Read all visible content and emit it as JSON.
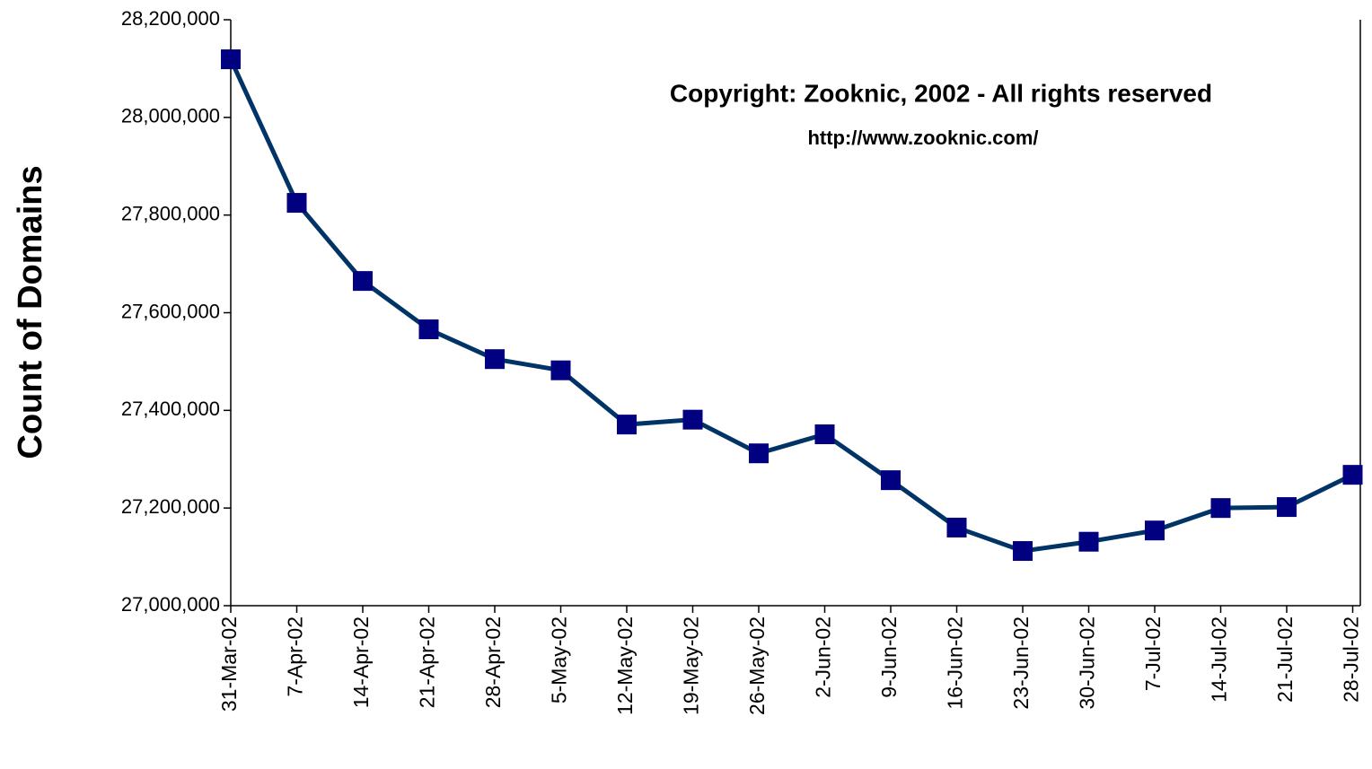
{
  "chart_data": {
    "type": "line",
    "y_label": "Count of Domains",
    "annotations": [
      "Copyright: Zooknic, 2002 - All rights reserved",
      "http://www.zooknic.com/"
    ],
    "categories": [
      "31-Mar-02",
      "7-Apr-02",
      "14-Apr-02",
      "21-Apr-02",
      "28-Apr-02",
      "5-May-02",
      "12-May-02",
      "19-May-02",
      "26-May-02",
      "2-Jun-02",
      "9-Jun-02",
      "16-Jun-02",
      "23-Jun-02",
      "30-Jun-02",
      "7-Jul-02",
      "14-Jul-02",
      "21-Jul-02",
      "28-Jul-02"
    ],
    "series": [
      {
        "name": "Count of Domains",
        "color": "#003366",
        "marker_color": "#000080",
        "values": [
          28119000,
          27825000,
          27665000,
          27566000,
          27505000,
          27482000,
          27371000,
          27381000,
          27312000,
          27351000,
          27257000,
          27160000,
          27112000,
          27131000,
          27154000,
          27200000,
          27202000,
          27268000
        ]
      }
    ],
    "ylim": [
      27000000,
      28200000
    ],
    "yticks": [
      {
        "value": 27000000,
        "label": "27,000,000"
      },
      {
        "value": 27200000,
        "label": "27,200,000"
      },
      {
        "value": 27400000,
        "label": "27,400,000"
      },
      {
        "value": 27600000,
        "label": "27,600,000"
      },
      {
        "value": 27800000,
        "label": "27,800,000"
      },
      {
        "value": 28000000,
        "label": "28,000,000"
      },
      {
        "value": 28200000,
        "label": "28,200,000"
      }
    ]
  }
}
